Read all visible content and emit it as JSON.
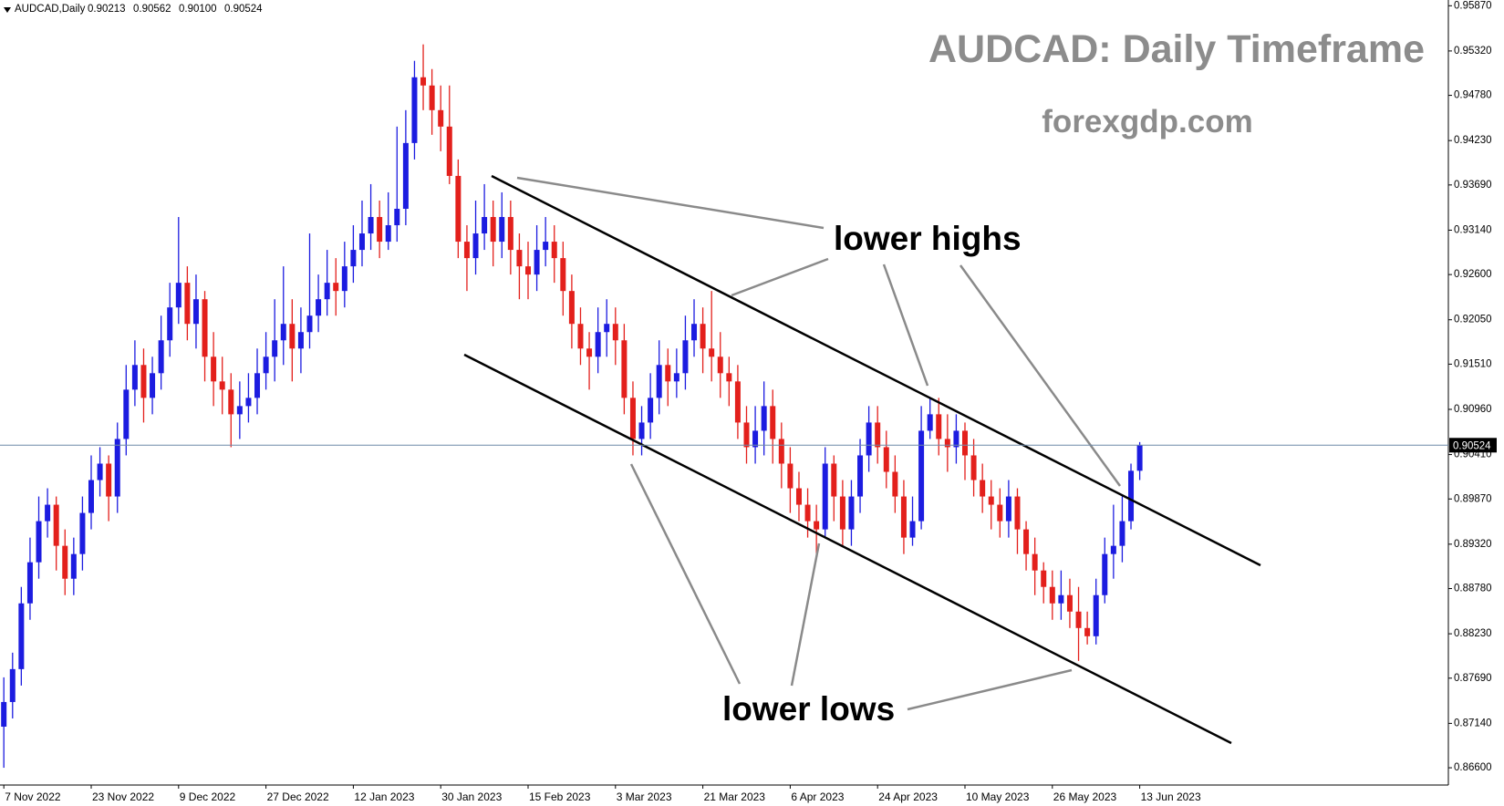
{
  "chart_data": {
    "type": "candlestick",
    "header": "AUDCAD,Daily",
    "header_values": [
      "0.90213",
      "0.90562",
      "0.90100",
      "0.90524"
    ],
    "title": "AUDCAD: Daily Timeframe",
    "subtitle": "forexgdp.com",
    "annotations": [
      "lower highs",
      "lower lows"
    ],
    "up_color": "#1c1ce0",
    "down_color": "#e3201c",
    "categories": [
      "7 Nov 2022",
      null,
      null,
      null,
      null,
      null,
      null,
      null,
      null,
      null,
      "23 Nov 2022",
      null,
      null,
      null,
      null,
      null,
      null,
      null,
      null,
      null,
      "9 Dec 2022",
      null,
      null,
      null,
      null,
      null,
      null,
      null,
      null,
      null,
      "27 Dec 2022",
      null,
      null,
      null,
      null,
      null,
      null,
      null,
      null,
      null,
      "12 Jan 2023",
      null,
      null,
      null,
      null,
      null,
      null,
      null,
      null,
      null,
      "30 Jan 2023",
      null,
      null,
      null,
      null,
      null,
      null,
      null,
      null,
      null,
      "15 Feb 2023",
      null,
      null,
      null,
      null,
      null,
      null,
      null,
      null,
      null,
      "3 Mar 2023",
      null,
      null,
      null,
      null,
      null,
      null,
      null,
      null,
      null,
      "21 Mar 2023",
      null,
      null,
      null,
      null,
      null,
      null,
      null,
      null,
      null,
      "6 Apr 2023",
      null,
      null,
      null,
      null,
      null,
      null,
      null,
      null,
      null,
      "24 Apr 2023",
      null,
      null,
      null,
      null,
      null,
      null,
      null,
      null,
      null,
      "10 May 2023",
      null,
      null,
      null,
      null,
      null,
      null,
      null,
      null,
      null,
      "26 May 2023",
      null,
      null,
      null,
      null,
      null,
      null,
      null,
      null,
      null,
      "13 Jun 2023"
    ],
    "open": [
      0.871,
      0.874,
      0.878,
      0.886,
      0.891,
      0.896,
      0.898,
      0.893,
      0.889,
      0.892,
      0.897,
      0.901,
      0.903,
      0.899,
      0.906,
      0.912,
      0.915,
      0.911,
      0.914,
      0.918,
      0.922,
      0.925,
      0.92,
      0.923,
      0.916,
      0.913,
      0.912,
      0.909,
      0.91,
      0.911,
      0.914,
      0.916,
      0.918,
      0.92,
      0.917,
      0.919,
      0.921,
      0.923,
      0.925,
      0.924,
      0.927,
      0.929,
      0.931,
      0.933,
      0.93,
      0.932,
      0.934,
      0.942,
      0.95,
      0.949,
      0.946,
      0.944,
      0.938,
      0.93,
      0.928,
      0.931,
      0.933,
      0.93,
      0.933,
      0.929,
      0.927,
      0.926,
      0.929,
      0.93,
      0.928,
      0.924,
      0.92,
      0.917,
      0.916,
      0.919,
      0.92,
      0.918,
      0.911,
      0.906,
      0.908,
      0.911,
      0.915,
      0.913,
      0.914,
      0.918,
      0.92,
      0.917,
      0.916,
      0.914,
      0.913,
      0.908,
      0.905,
      0.907,
      0.91,
      0.906,
      0.903,
      0.9,
      0.898,
      0.896,
      0.895,
      0.903,
      0.899,
      0.895,
      0.899,
      0.904,
      0.908,
      0.905,
      0.902,
      0.899,
      0.894,
      0.896,
      0.907,
      0.909,
      0.906,
      0.905,
      0.907,
      0.904,
      0.901,
      0.899,
      0.898,
      0.896,
      0.899,
      0.895,
      0.892,
      0.89,
      0.888,
      0.886,
      0.887,
      0.885,
      0.883,
      0.882,
      0.887,
      0.892,
      0.893,
      0.896,
      0.90213
    ],
    "high": [
      0.877,
      0.88,
      0.888,
      0.894,
      0.899,
      0.9,
      0.899,
      0.895,
      0.894,
      0.899,
      0.904,
      0.905,
      0.904,
      0.908,
      0.915,
      0.918,
      0.917,
      0.916,
      0.921,
      0.925,
      0.933,
      0.927,
      0.926,
      0.924,
      0.919,
      0.916,
      0.914,
      0.913,
      0.914,
      0.917,
      0.919,
      0.923,
      0.927,
      0.923,
      0.922,
      0.931,
      0.926,
      0.929,
      0.928,
      0.93,
      0.932,
      0.935,
      0.937,
      0.935,
      0.936,
      0.944,
      0.946,
      0.952,
      0.954,
      0.951,
      0.949,
      0.949,
      0.94,
      0.932,
      0.935,
      0.937,
      0.935,
      0.936,
      0.935,
      0.931,
      0.93,
      0.932,
      0.933,
      0.932,
      0.93,
      0.926,
      0.922,
      0.919,
      0.922,
      0.923,
      0.922,
      0.92,
      0.913,
      0.91,
      0.914,
      0.918,
      0.917,
      0.917,
      0.921,
      0.923,
      0.922,
      0.924,
      0.919,
      0.916,
      0.915,
      0.91,
      0.91,
      0.913,
      0.912,
      0.908,
      0.905,
      0.902,
      0.9,
      0.898,
      0.905,
      0.904,
      0.901,
      0.901,
      0.906,
      0.91,
      0.91,
      0.907,
      0.904,
      0.901,
      0.899,
      0.91,
      0.911,
      0.911,
      0.909,
      0.909,
      0.908,
      0.906,
      0.903,
      0.901,
      0.9,
      0.901,
      0.9,
      0.896,
      0.894,
      0.891,
      0.89,
      0.89,
      0.889,
      0.888,
      0.885,
      0.889,
      0.894,
      0.898,
      0.899,
      0.903,
      0.90562
    ],
    "low": [
      0.866,
      0.872,
      0.876,
      0.884,
      0.889,
      0.894,
      0.89,
      0.887,
      0.887,
      0.89,
      0.895,
      0.899,
      0.896,
      0.897,
      0.904,
      0.91,
      0.908,
      0.909,
      0.912,
      0.916,
      0.92,
      0.918,
      0.917,
      0.913,
      0.91,
      0.909,
      0.905,
      0.906,
      0.908,
      0.909,
      0.912,
      0.913,
      0.915,
      0.913,
      0.914,
      0.917,
      0.919,
      0.921,
      0.921,
      0.922,
      0.925,
      0.927,
      0.929,
      0.928,
      0.929,
      0.93,
      0.932,
      0.94,
      0.946,
      0.943,
      0.941,
      0.937,
      0.928,
      0.924,
      0.926,
      0.929,
      0.927,
      0.928,
      0.926,
      0.923,
      0.923,
      0.924,
      0.927,
      0.925,
      0.921,
      0.917,
      0.915,
      0.912,
      0.914,
      0.916,
      0.915,
      0.909,
      0.904,
      0.904,
      0.906,
      0.909,
      0.91,
      0.911,
      0.912,
      0.916,
      0.914,
      0.913,
      0.911,
      0.91,
      0.906,
      0.903,
      0.903,
      0.904,
      0.903,
      0.9,
      0.897,
      0.896,
      0.894,
      0.892,
      0.894,
      0.896,
      0.893,
      0.893,
      0.897,
      0.902,
      0.903,
      0.9,
      0.897,
      0.892,
      0.893,
      0.895,
      0.906,
      0.904,
      0.902,
      0.903,
      0.901,
      0.899,
      0.897,
      0.895,
      0.894,
      0.894,
      0.892,
      0.89,
      0.887,
      0.886,
      0.884,
      0.884,
      0.883,
      0.879,
      0.881,
      0.881,
      0.886,
      0.889,
      0.891,
      0.895,
      0.901
    ],
    "close": [
      0.874,
      0.878,
      0.886,
      0.891,
      0.896,
      0.898,
      0.893,
      0.889,
      0.892,
      0.897,
      0.901,
      0.903,
      0.899,
      0.906,
      0.912,
      0.915,
      0.911,
      0.914,
      0.918,
      0.922,
      0.925,
      0.92,
      0.923,
      0.916,
      0.913,
      0.912,
      0.909,
      0.91,
      0.911,
      0.914,
      0.916,
      0.918,
      0.92,
      0.917,
      0.919,
      0.921,
      0.923,
      0.925,
      0.924,
      0.927,
      0.929,
      0.931,
      0.933,
      0.93,
      0.932,
      0.934,
      0.942,
      0.95,
      0.949,
      0.946,
      0.944,
      0.938,
      0.93,
      0.928,
      0.931,
      0.933,
      0.93,
      0.933,
      0.929,
      0.927,
      0.926,
      0.929,
      0.93,
      0.928,
      0.924,
      0.92,
      0.917,
      0.916,
      0.919,
      0.92,
      0.918,
      0.911,
      0.906,
      0.908,
      0.911,
      0.915,
      0.913,
      0.914,
      0.918,
      0.92,
      0.917,
      0.916,
      0.914,
      0.913,
      0.908,
      0.905,
      0.907,
      0.91,
      0.906,
      0.903,
      0.9,
      0.898,
      0.896,
      0.895,
      0.903,
      0.899,
      0.895,
      0.899,
      0.904,
      0.908,
      0.905,
      0.902,
      0.899,
      0.894,
      0.896,
      0.907,
      0.909,
      0.906,
      0.905,
      0.907,
      0.904,
      0.901,
      0.899,
      0.898,
      0.896,
      0.899,
      0.895,
      0.892,
      0.89,
      0.888,
      0.886,
      0.887,
      0.885,
      0.883,
      0.882,
      0.887,
      0.892,
      0.893,
      0.896,
      0.90213,
      0.90524
    ],
    "ylim": [
      0.8639,
      0.9594
    ],
    "yticks": [
      {
        "value": 0.9587,
        "label": "0.95870"
      },
      {
        "value": 0.9532,
        "label": "0.95320"
      },
      {
        "value": 0.9478,
        "label": "0.94780"
      },
      {
        "value": 0.9423,
        "label": "0.94230"
      },
      {
        "value": 0.9369,
        "label": "0.93690"
      },
      {
        "value": 0.9314,
        "label": "0.93140"
      },
      {
        "value": 0.926,
        "label": "0.92600"
      },
      {
        "value": 0.9205,
        "label": "0.92050"
      },
      {
        "value": 0.9151,
        "label": "0.91510"
      },
      {
        "value": 0.9096,
        "label": "0.90960"
      },
      {
        "value": 0.9041,
        "label": "0.90410"
      },
      {
        "value": 0.8987,
        "label": "0.89870"
      },
      {
        "value": 0.8932,
        "label": "0.89320"
      },
      {
        "value": 0.8878,
        "label": "0.88780"
      },
      {
        "value": 0.8823,
        "label": "0.88230"
      },
      {
        "value": 0.8769,
        "label": "0.87690"
      },
      {
        "value": 0.8714,
        "label": "0.87140"
      },
      {
        "value": 0.866,
        "label": "0.86600"
      }
    ],
    "grid": false
  }
}
